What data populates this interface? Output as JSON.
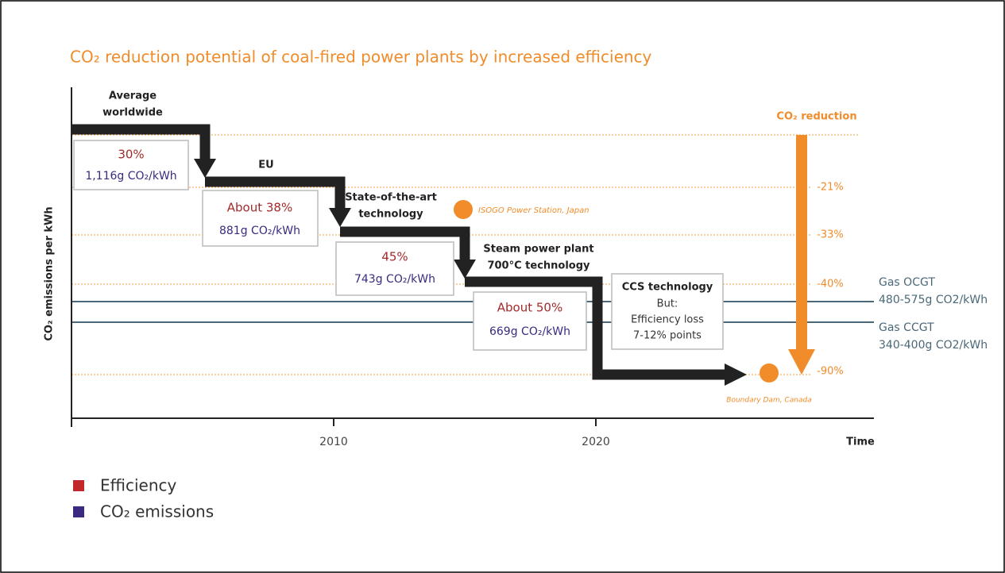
{
  "title": "CO₂ reduction potential of coal-fired power plants by increased efficiency",
  "y_axis_label": "CO₂ emissions per kWh",
  "x_axis_label": "Time",
  "x_ticks": [
    "2010",
    "2020"
  ],
  "steps": [
    {
      "label": [
        "Average",
        "worldwide"
      ],
      "efficiency": "30%",
      "emissions": "1,116g CO₂/kWh"
    },
    {
      "label": [
        "EU"
      ],
      "efficiency": "About 38%",
      "emissions": "881g CO₂/kWh"
    },
    {
      "label": [
        "State-of-the-art",
        "technology"
      ],
      "efficiency": "45%",
      "emissions": "743g CO₂/kWh"
    },
    {
      "label": [
        "Steam power plant",
        "700°C technology"
      ],
      "efficiency": "About 50%",
      "emissions": "669g CO₂/kWh"
    }
  ],
  "ccs": {
    "title": "CCS technology",
    "lines": [
      "But:",
      "Efficiency loss",
      "7-12% points"
    ]
  },
  "reduction": {
    "title": "CO₂ reduction",
    "levels": [
      "-21%",
      "-33%",
      "-40%",
      "-90%"
    ]
  },
  "stations": [
    "ISOGO Power Station, Japan",
    "Boundary Dam, Canada"
  ],
  "gas": [
    {
      "name": "Gas OCGT",
      "range": "480-575g CO2/kWh"
    },
    {
      "name": "Gas CCGT",
      "range": "340-400g CO2/kWh"
    }
  ],
  "legend": [
    "Efficiency",
    "CO₂ emissions"
  ]
}
